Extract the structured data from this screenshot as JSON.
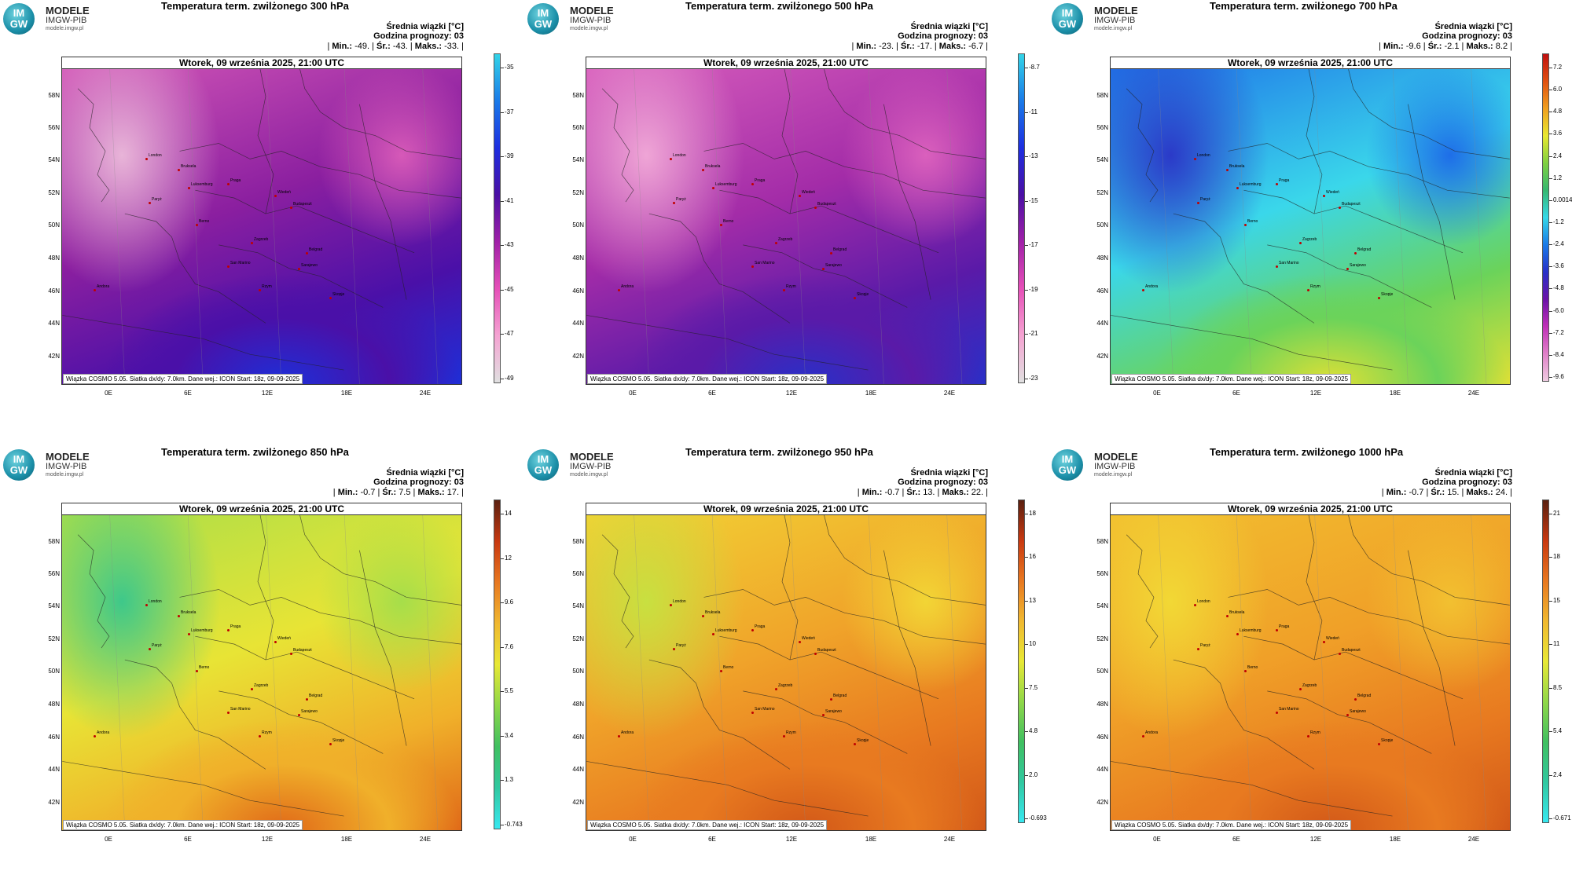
{
  "logo": {
    "badge_top": "IM",
    "badge_bottom": "GW",
    "title": "MODELE",
    "subtitle": "IMGW-PIB",
    "url": "modele.imgw.pl"
  },
  "map_common": {
    "date_label": "Wtorek, 09 września 2025, 21:00 UTC",
    "credit": "Wiązka COSMO 5.05. Siatka dx/dy: 7.0km. Dane wej.: ICON Start: 18z, 09-09-2025",
    "stat_line1": "Średnia wiązki [°C]",
    "stat_line2": "Godzina prognozy: 03",
    "lat_labels": [
      "58N",
      "56N",
      "54N",
      "52N",
      "50N",
      "48N",
      "46N",
      "44N",
      "42N"
    ],
    "lon_labels": [
      "0E",
      "6E",
      "12E",
      "18E",
      "24E"
    ],
    "cities": [
      "London",
      "Bruksela",
      "Luksemburg",
      "Paryż",
      "Praga",
      "Wiedeń",
      "Budapeszt",
      "Berno",
      "Zagrzeb",
      "Belgrad",
      "San Marino",
      "Sarajewo",
      "Rzym",
      "Skopje",
      "Andora"
    ]
  },
  "panels": [
    {
      "title": "Temperatura term. zwilżonego 300 hPa",
      "min": "-49.",
      "avg": "-43.",
      "max": "-33.",
      "colorbar_labels": [
        "-35",
        "-37",
        "-39",
        "-41",
        "-43",
        "-45",
        "-47",
        "-49"
      ],
      "field_colors": [
        "#e8b4d8",
        "#d659b8",
        "#8b1fa0",
        "#4a10a8",
        "#1d2fd8"
      ],
      "colorbar_colors": [
        "#e0e0e0",
        "#f5a3d2",
        "#e64fb8",
        "#a020a8",
        "#4a0fa5",
        "#1d2ee0",
        "#1a7ae8",
        "#33d4e8"
      ]
    },
    {
      "title": "Temperatura term. zwilżonego 500 hPa",
      "min": "-23.",
      "avg": "-17.",
      "max": "-6.7",
      "colorbar_labels": [
        "-8.7",
        "-11",
        "-13",
        "-15",
        "-17",
        "-19",
        "-21",
        "-23"
      ],
      "field_colors": [
        "#efa5d6",
        "#da60bd",
        "#a32ca8",
        "#5a1aa8",
        "#2830c8"
      ],
      "colorbar_colors": [
        "#e0e0e0",
        "#f5a3d2",
        "#e64fb8",
        "#a020a8",
        "#4a0fa5",
        "#1d2ee0",
        "#1a7ae8",
        "#33d4e8"
      ]
    },
    {
      "title": "Temperatura term. zwilżonego 700 hPa",
      "min": "-9.6",
      "avg": "-2.1",
      "max": "8.2",
      "colorbar_labels": [
        "7.2",
        "6.0",
        "4.8",
        "3.6",
        "2.4",
        "1.2",
        "0.0014",
        "-1.2",
        "-2.4",
        "-3.6",
        "-4.8",
        "-6.0",
        "-7.2",
        "-8.4",
        "-9.6"
      ],
      "field_colors": [
        "#2b3ac8",
        "#1e6ee8",
        "#3ad7ea",
        "#6bd35a",
        "#e0e035"
      ],
      "colorbar_colors": [
        "#eecbe0",
        "#e080c8",
        "#c030b8",
        "#6a12a8",
        "#2830c8",
        "#1a7ae8",
        "#35d8e8",
        "#35b870",
        "#7fd040",
        "#e8e830",
        "#f0a020",
        "#e05010",
        "#c01010"
      ]
    },
    {
      "title": "Temperatura term. zwilżonego 850 hPa",
      "min": "-0.7",
      "avg": "7.5",
      "max": "17.",
      "colorbar_labels": [
        "14",
        "12",
        "9.6",
        "7.6",
        "5.5",
        "3.4",
        "1.3",
        "-0.743"
      ],
      "field_colors": [
        "#3ec88a",
        "#a6de4a",
        "#e8e435",
        "#f0b02a",
        "#e06818"
      ],
      "colorbar_colors": [
        "#38e8f0",
        "#30c8a0",
        "#40c060",
        "#90d848",
        "#e8e835",
        "#f0b830",
        "#e87820",
        "#c83810",
        "#5a2010"
      ]
    },
    {
      "title": "Temperatura term. zwilżonego 950 hPa",
      "min": "-0.7",
      "avg": "13.",
      "max": "22.",
      "colorbar_labels": [
        "18",
        "16",
        "13",
        "10",
        "7.5",
        "4.8",
        "2.0",
        "-0.693"
      ],
      "field_colors": [
        "#c8e040",
        "#f2d535",
        "#f0a42a",
        "#e87a20",
        "#d25818"
      ],
      "colorbar_colors": [
        "#38e8f0",
        "#30c8a0",
        "#40c060",
        "#90d848",
        "#e8e835",
        "#f0b830",
        "#e87820",
        "#c83810",
        "#5a2010"
      ]
    },
    {
      "title": "Temperatura term. zwilżonego 1000 hPa",
      "min": "-0.7",
      "avg": "15.",
      "max": "24.",
      "colorbar_labels": [
        "21",
        "18",
        "15",
        "11",
        "8.5",
        "5.4",
        "2.4",
        "-0.671"
      ],
      "field_colors": [
        "#f2d835",
        "#f2c030",
        "#f0a028",
        "#e87a20",
        "#d25818"
      ],
      "colorbar_colors": [
        "#38e8f0",
        "#30c8a0",
        "#40c060",
        "#90d848",
        "#e8e835",
        "#f0b830",
        "#e87820",
        "#c83810",
        "#5a2010"
      ]
    }
  ]
}
